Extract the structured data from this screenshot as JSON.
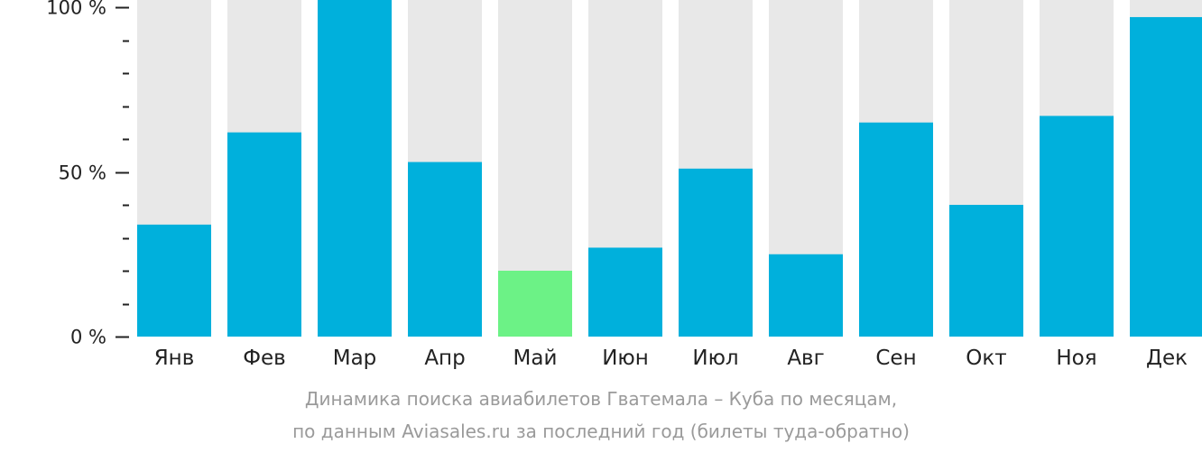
{
  "chart_data": {
    "type": "bar",
    "categories": [
      "Янв",
      "Фев",
      "Мар",
      "Апр",
      "Май",
      "Июн",
      "Июл",
      "Авг",
      "Сен",
      "Окт",
      "Ноя",
      "Дек"
    ],
    "values": [
      34,
      62,
      100,
      53,
      20,
      27,
      51,
      25,
      65,
      40,
      67,
      97
    ],
    "ylim": [
      0,
      100
    ],
    "yticks": [
      {
        "value": 0,
        "label": "0 %"
      },
      {
        "value": 50,
        "label": "50 %"
      },
      {
        "value": 100,
        "label": "100 %"
      }
    ],
    "minor_tick_step": 10,
    "highlight_index": 4,
    "colors": {
      "bar": "#00b0dc",
      "highlight": "#6cf286",
      "background_bar": "#e8e8e8",
      "axis": "#222222"
    },
    "grid": false,
    "legend": "none"
  },
  "caption": {
    "line1": "Динамика поиска авиабилетов Гватемала – Куба по месяцам,",
    "line2": "по данным Aviasales.ru за последний год (билеты туда-обратно)"
  }
}
